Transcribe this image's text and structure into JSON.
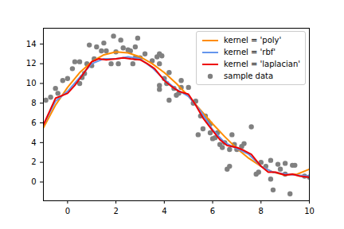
{
  "chart_data": {
    "type": "line",
    "xlim": [
      -1,
      10
    ],
    "xticks": [
      0,
      2,
      4,
      6,
      8,
      10
    ],
    "ylim": [
      -1.9,
      15.6
    ],
    "yticks": [
      0,
      2,
      4,
      6,
      8,
      10,
      12,
      14
    ],
    "grid": false,
    "legend": "upper right",
    "series": [
      {
        "name": "kernel = 'poly'",
        "type": "line",
        "color": "#ff8c00",
        "x": [
          -1,
          -0.5,
          0,
          0.5,
          1,
          1.5,
          2,
          2.5,
          3,
          3.5,
          4,
          4.5,
          5,
          5.5,
          6,
          6.5,
          7,
          7.5,
          8,
          8.5,
          9,
          9.5,
          10
        ],
        "values": [
          5.5,
          7.8,
          9.6,
          11.1,
          12.2,
          12.9,
          13.2,
          13.1,
          12.7,
          12.0,
          11.1,
          10.0,
          8.7,
          7.3,
          5.9,
          4.6,
          3.4,
          2.4,
          1.6,
          1.0,
          0.7,
          0.8,
          1.3
        ]
      },
      {
        "name": "kernel = 'rbf'",
        "type": "line",
        "color": "#6495ed",
        "x": [
          -1,
          -0.5,
          0,
          0.5,
          1,
          1.5,
          2,
          2.5,
          3,
          3.5,
          4,
          4.5,
          5,
          5.5,
          6,
          6.5,
          7,
          7.5,
          8,
          8.5,
          9,
          9.5,
          10
        ],
        "values": [
          5.8,
          8.2,
          9.2,
          10.6,
          12.0,
          12.5,
          12.5,
          12.7,
          12.5,
          11.6,
          10.4,
          9.4,
          8.7,
          7.2,
          5.3,
          4.0,
          3.4,
          2.8,
          1.6,
          1.0,
          0.8,
          0.7,
          0.6
        ]
      },
      {
        "name": "kernel = 'laplacian'",
        "type": "line",
        "color": "#ee0000",
        "x": [
          -1,
          -0.5,
          0,
          0.3,
          0.6,
          1,
          1.3,
          1.6,
          2,
          2.3,
          2.6,
          3,
          3.3,
          3.6,
          4,
          4.3,
          4.6,
          5,
          5.3,
          5.6,
          6,
          6.3,
          6.6,
          7,
          7.3,
          7.6,
          8,
          8.3,
          8.6,
          9,
          9.3,
          9.6,
          10
        ],
        "values": [
          5.8,
          8.5,
          9.0,
          9.8,
          10.8,
          12.2,
          12.5,
          12.4,
          12.5,
          12.6,
          12.5,
          12.4,
          12.0,
          11.5,
          10.3,
          9.7,
          9.2,
          8.9,
          7.8,
          6.5,
          5.2,
          4.3,
          3.7,
          3.5,
          3.2,
          2.8,
          1.6,
          1.0,
          1.0,
          0.7,
          0.8,
          0.6,
          0.5
        ]
      },
      {
        "name": "sample data",
        "type": "scatter",
        "color": "#808080",
        "marker": "circle",
        "x": [
          -0.9,
          -0.7,
          -0.5,
          -0.4,
          -0.2,
          0,
          0.2,
          0.3,
          0.5,
          0.5,
          0.6,
          0.7,
          0.8,
          0.9,
          1.0,
          1.1,
          1.2,
          1.4,
          1.5,
          1.6,
          1.8,
          1.9,
          2.0,
          2.1,
          2.2,
          2.3,
          2.5,
          2.6,
          2.7,
          2.8,
          2.8,
          2.9,
          3.0,
          3.2,
          3.5,
          3.7,
          3.8,
          3.8,
          3.9,
          3.8,
          3.8,
          4.0,
          4.1,
          4.2,
          4.2,
          4.4,
          4.5,
          4.6,
          4.7,
          4.7,
          5.0,
          5.2,
          5.3,
          5.4,
          5.5,
          5.6,
          5.7,
          5.8,
          5.9,
          5.9,
          6.0,
          6.1,
          6.2,
          6.3,
          6.4,
          6.5,
          6.6,
          6.7,
          6.7,
          6.8,
          6.9,
          7.0,
          7.2,
          7.3,
          7.6,
          7.8,
          7.9,
          8.0,
          8.2,
          8.4,
          8.4,
          8.5,
          8.7,
          8.8,
          9.0,
          9.0,
          9.2,
          9.3,
          9.4,
          9.8,
          10.0
        ],
        "values": [
          8.3,
          8.6,
          9.5,
          9.0,
          10.3,
          10.5,
          11.5,
          12.2,
          12.2,
          10.0,
          10.6,
          11.0,
          12.0,
          13.9,
          11.8,
          12.5,
          13.7,
          13.3,
          14.1,
          13.3,
          12.0,
          14.8,
          13.2,
          12.0,
          14.4,
          13.6,
          13.4,
          13.3,
          12.0,
          13.7,
          12.6,
          14.6,
          12.6,
          13.0,
          12.3,
          12.7,
          12.0,
          13.0,
          12.8,
          9.4,
          9.8,
          10.5,
          10.0,
          8.3,
          11.1,
          9.5,
          8.8,
          9.0,
          10.3,
          9.6,
          9.6,
          8.0,
          8.2,
          4.8,
          6.7,
          5.4,
          6.7,
          6.2,
          5.9,
          5.0,
          4.4,
          4.5,
          5.0,
          3.8,
          3.5,
          4.0,
          1.3,
          1.6,
          3.3,
          4.8,
          3.8,
          3.3,
          3.6,
          3.9,
          5.6,
          0.8,
          1.0,
          2.0,
          1.6,
          0.3,
          2.2,
          -0.8,
          1.8,
          1.3,
          0.8,
          1.9,
          -1.2,
          1.7,
          1.7,
          0.6,
          0.5
        ]
      }
    ]
  }
}
